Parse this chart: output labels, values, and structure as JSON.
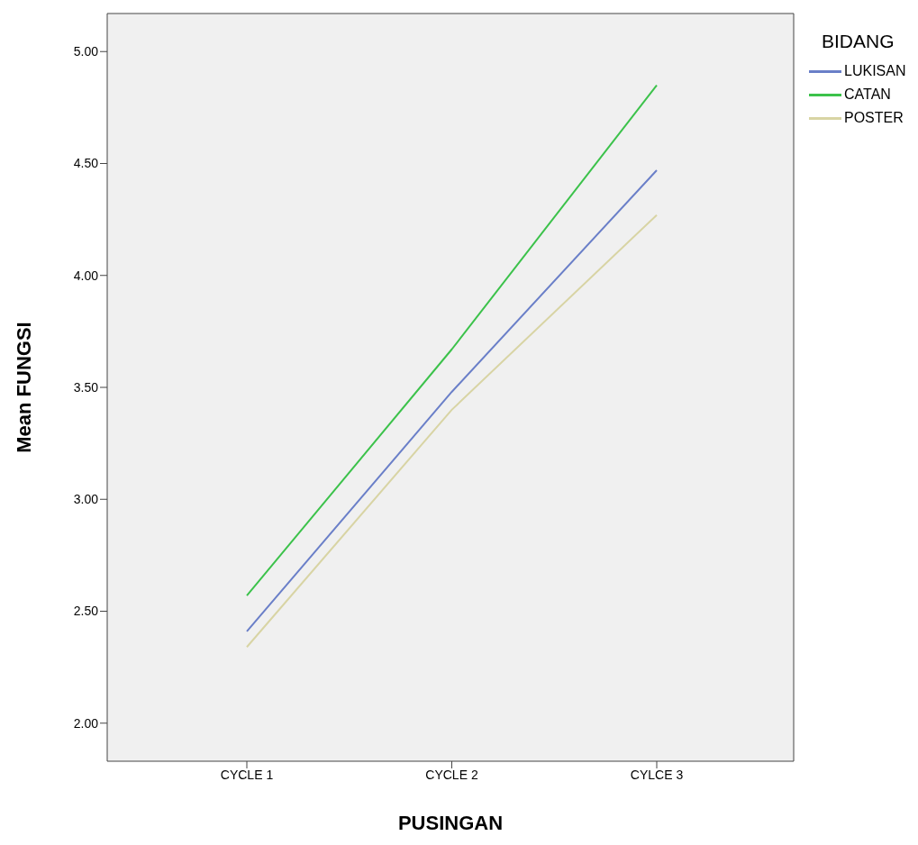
{
  "chart_data": {
    "type": "line",
    "xlabel": "PUSINGAN",
    "ylabel": "Mean FUNGSI",
    "legend_title": "BIDANG",
    "categories": [
      "CYCLE 1",
      "CYCLE 2",
      "CYLCE 3"
    ],
    "series": [
      {
        "name": "LUKISAN",
        "color": "#6a7fc8",
        "values": [
          2.41,
          3.48,
          4.47
        ]
      },
      {
        "name": "CATAN",
        "color": "#3cc24b",
        "values": [
          2.57,
          3.67,
          4.85
        ]
      },
      {
        "name": "POSTER",
        "color": "#d8d4a4",
        "values": [
          2.34,
          3.4,
          4.27
        ]
      }
    ],
    "ylim": [
      1.83,
      5.17
    ],
    "yticks": [
      {
        "value": 2,
        "label": "2.00"
      },
      {
        "value": 2.5,
        "label": "2.50"
      },
      {
        "value": 3,
        "label": "3.00"
      },
      {
        "value": 3.5,
        "label": "3.50"
      },
      {
        "value": 4,
        "label": "4.00"
      },
      {
        "value": 4.5,
        "label": "4.50"
      },
      {
        "value": 5,
        "label": "5.00"
      }
    ],
    "grid": false,
    "legend": "top right",
    "marker": "none",
    "line_style": "solid"
  }
}
